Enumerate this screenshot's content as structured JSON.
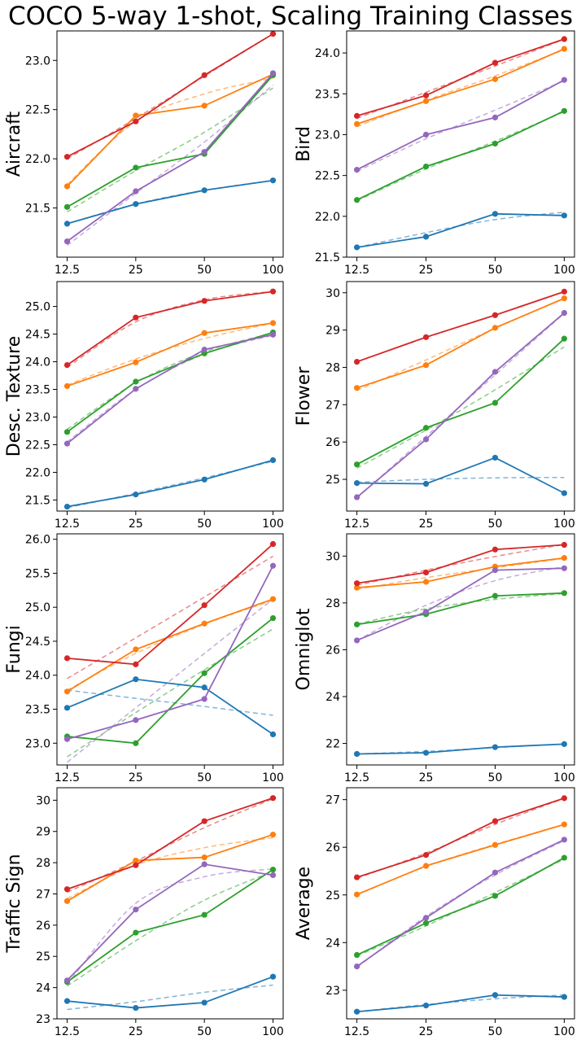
{
  "title": "COCO 5-way 1-shot, Scaling Training Classes",
  "series_colors": {
    "blue": "#1f77b4",
    "orange": "#ff7f0e",
    "green": "#2ca02c",
    "red": "#d62728",
    "purple": "#9467bd"
  },
  "chart_data": [
    {
      "type": "line",
      "ylabel": "Aircraft",
      "categories": [
        "12.5",
        "25",
        "50",
        "100"
      ],
      "ylim": [
        21.0,
        23.3
      ],
      "yticks": [
        21.5,
        22.0,
        22.5,
        23.0
      ],
      "ytick_labels": [
        "21.5",
        "22.0",
        "22.5",
        "23.0"
      ],
      "series": [
        {
          "color": "blue",
          "values": [
            21.34,
            21.54,
            21.68,
            21.78
          ],
          "fit": [
            21.34,
            21.54,
            21.68,
            21.78
          ]
        },
        {
          "color": "orange",
          "values": [
            21.72,
            22.44,
            22.54,
            22.86
          ],
          "fit": [
            21.74,
            22.38,
            22.66,
            22.82
          ]
        },
        {
          "color": "green",
          "values": [
            21.51,
            21.91,
            22.05,
            22.85
          ],
          "fit": [
            21.46,
            21.88,
            22.27,
            22.72
          ]
        },
        {
          "color": "red",
          "values": [
            22.02,
            22.38,
            22.85,
            23.27
          ],
          "fit": [
            22.0,
            22.41,
            22.84,
            23.27
          ]
        },
        {
          "color": "purple",
          "values": [
            21.16,
            21.67,
            22.07,
            22.87
          ],
          "fit": [
            21.12,
            21.65,
            22.17,
            22.75
          ]
        }
      ]
    },
    {
      "type": "line",
      "ylabel": "Bird",
      "categories": [
        "12.5",
        "25",
        "50",
        "100"
      ],
      "ylim": [
        21.5,
        24.27
      ],
      "yticks": [
        21.5,
        22.0,
        22.5,
        23.0,
        23.5,
        24.0
      ],
      "ytick_labels": [
        "21.5",
        "22.0",
        "22.5",
        "23.0",
        "23.5",
        "24.0"
      ],
      "series": [
        {
          "color": "blue",
          "values": [
            21.62,
            21.75,
            22.03,
            22.01
          ],
          "fit": [
            21.62,
            21.8,
            21.96,
            22.05
          ]
        },
        {
          "color": "orange",
          "values": [
            23.13,
            23.41,
            23.68,
            24.05
          ],
          "fit": [
            23.1,
            23.42,
            23.72,
            24.04
          ]
        },
        {
          "color": "green",
          "values": [
            22.2,
            22.61,
            22.89,
            23.29
          ],
          "fit": [
            22.19,
            22.58,
            22.92,
            23.28
          ]
        },
        {
          "color": "red",
          "values": [
            23.23,
            23.48,
            23.88,
            24.17
          ],
          "fit": [
            23.2,
            23.52,
            23.84,
            24.17
          ]
        },
        {
          "color": "purple",
          "values": [
            22.57,
            23.0,
            23.21,
            23.67
          ],
          "fit": [
            22.55,
            22.95,
            23.3,
            23.66
          ]
        }
      ]
    },
    {
      "type": "line",
      "ylabel": "Desc. Texture",
      "categories": [
        "12.5",
        "25",
        "50",
        "100"
      ],
      "ylim": [
        21.3,
        25.45
      ],
      "yticks": [
        21.5,
        22.0,
        22.5,
        23.0,
        23.5,
        24.0,
        24.5,
        25.0
      ],
      "ytick_labels": [
        "21.5",
        "22.0",
        "22.5",
        "23.0",
        "23.5",
        "24.0",
        "24.5",
        "25.0"
      ],
      "series": [
        {
          "color": "blue",
          "values": [
            21.38,
            21.6,
            21.87,
            22.22
          ],
          "fit": [
            21.36,
            21.62,
            21.9,
            22.2
          ]
        },
        {
          "color": "orange",
          "values": [
            23.56,
            23.99,
            24.52,
            24.7
          ],
          "fit": [
            23.58,
            24.05,
            24.42,
            24.7
          ]
        },
        {
          "color": "green",
          "values": [
            22.73,
            23.64,
            24.15,
            24.53
          ],
          "fit": [
            22.78,
            23.62,
            24.18,
            24.52
          ]
        },
        {
          "color": "red",
          "values": [
            23.94,
            24.8,
            25.1,
            25.27
          ],
          "fit": [
            23.9,
            24.72,
            25.12,
            25.27
          ]
        },
        {
          "color": "purple",
          "values": [
            22.52,
            23.51,
            24.22,
            24.49
          ],
          "fit": [
            22.55,
            23.5,
            24.14,
            24.48
          ]
        }
      ]
    },
    {
      "type": "line",
      "ylabel": "Flower",
      "categories": [
        "12.5",
        "25",
        "50",
        "100"
      ],
      "ylim": [
        24.15,
        30.3
      ],
      "yticks": [
        25,
        26,
        27,
        28,
        29,
        30
      ],
      "ytick_labels": [
        "25",
        "26",
        "27",
        "28",
        "29",
        "30"
      ],
      "series": [
        {
          "color": "blue",
          "values": [
            24.9,
            24.88,
            25.58,
            24.63
          ],
          "fit": [
            24.92,
            25.0,
            25.04,
            25.05
          ]
        },
        {
          "color": "orange",
          "values": [
            27.45,
            28.06,
            29.06,
            29.85
          ],
          "fit": [
            27.38,
            28.2,
            29.05,
            29.85
          ]
        },
        {
          "color": "green",
          "values": [
            25.4,
            26.38,
            27.05,
            28.77
          ],
          "fit": [
            25.3,
            26.32,
            27.4,
            28.55
          ]
        },
        {
          "color": "red",
          "values": [
            28.15,
            28.81,
            29.4,
            30.03
          ],
          "fit": [
            28.15,
            28.8,
            29.4,
            30.03
          ]
        },
        {
          "color": "purple",
          "values": [
            24.52,
            26.07,
            27.88,
            29.46
          ],
          "fit": [
            24.5,
            26.15,
            27.8,
            29.45
          ]
        }
      ]
    },
    {
      "type": "line",
      "ylabel": "Fungi",
      "categories": [
        "12.5",
        "25",
        "50",
        "100"
      ],
      "ylim": [
        22.68,
        26.08
      ],
      "yticks": [
        23.0,
        23.5,
        24.0,
        24.5,
        25.0,
        25.5,
        26.0
      ],
      "ytick_labels": [
        "23.0",
        "23.5",
        "24.0",
        "24.5",
        "25.0",
        "25.5",
        "26.0"
      ],
      "series": [
        {
          "color": "blue",
          "values": [
            23.52,
            23.94,
            23.82,
            23.13
          ],
          "fit": [
            23.78,
            23.66,
            23.54,
            23.41
          ]
        },
        {
          "color": "orange",
          "values": [
            23.76,
            24.38,
            24.76,
            25.12
          ],
          "fit": [
            23.78,
            24.32,
            24.75,
            25.1
          ]
        },
        {
          "color": "green",
          "values": [
            23.1,
            23.0,
            24.03,
            24.84
          ],
          "fit": [
            22.8,
            23.45,
            24.08,
            24.68
          ]
        },
        {
          "color": "red",
          "values": [
            24.25,
            24.16,
            25.03,
            25.93
          ],
          "fit": [
            23.95,
            24.55,
            25.15,
            25.75
          ]
        },
        {
          "color": "purple",
          "values": [
            23.06,
            23.34,
            23.65,
            25.61
          ],
          "fit": [
            22.72,
            23.52,
            24.32,
            25.12
          ]
        }
      ]
    },
    {
      "type": "line",
      "ylabel": "Omniglot",
      "categories": [
        "12.5",
        "25",
        "50",
        "100"
      ],
      "ylim": [
        21.08,
        30.95
      ],
      "yticks": [
        22,
        24,
        26,
        28,
        30
      ],
      "ytick_labels": [
        "22",
        "24",
        "26",
        "28",
        "30"
      ],
      "series": [
        {
          "color": "blue",
          "values": [
            21.55,
            21.6,
            21.84,
            21.97
          ],
          "fit": [
            21.55,
            21.66,
            21.82,
            21.98
          ]
        },
        {
          "color": "orange",
          "values": [
            28.65,
            28.9,
            29.55,
            29.92
          ],
          "fit": [
            28.58,
            29.08,
            29.5,
            29.9
          ]
        },
        {
          "color": "green",
          "values": [
            27.08,
            27.52,
            28.3,
            28.42
          ],
          "fit": [
            27.1,
            27.75,
            28.15,
            28.4
          ]
        },
        {
          "color": "red",
          "values": [
            28.84,
            29.3,
            30.28,
            30.48
          ],
          "fit": [
            28.75,
            29.4,
            29.98,
            30.5
          ]
        },
        {
          "color": "purple",
          "values": [
            26.4,
            27.62,
            29.4,
            29.48
          ],
          "fit": [
            26.4,
            27.9,
            28.95,
            29.55
          ]
        }
      ]
    },
    {
      "type": "line",
      "ylabel": "Traffic Sign",
      "categories": [
        "12.5",
        "25",
        "50",
        "100"
      ],
      "ylim": [
        23.0,
        30.4
      ],
      "yticks": [
        23,
        24,
        25,
        26,
        27,
        28,
        29,
        30
      ],
      "ytick_labels": [
        "23",
        "24",
        "25",
        "26",
        "27",
        "28",
        "29",
        "30"
      ],
      "series": [
        {
          "color": "blue",
          "values": [
            23.57,
            23.35,
            23.52,
            24.35
          ],
          "fit": [
            23.3,
            23.55,
            23.85,
            24.08
          ]
        },
        {
          "color": "orange",
          "values": [
            26.77,
            28.07,
            28.17,
            28.9
          ],
          "fit": [
            26.85,
            27.92,
            28.48,
            28.8
          ]
        },
        {
          "color": "green",
          "values": [
            24.18,
            25.76,
            26.33,
            27.78
          ],
          "fit": [
            24.05,
            25.5,
            26.8,
            27.72
          ]
        },
        {
          "color": "red",
          "values": [
            27.15,
            27.92,
            29.33,
            30.07
          ],
          "fit": [
            27.05,
            28.05,
            29.12,
            30.05
          ]
        },
        {
          "color": "purple",
          "values": [
            24.23,
            26.5,
            27.95,
            27.6
          ],
          "fit": [
            24.1,
            26.7,
            27.55,
            27.8
          ]
        }
      ]
    },
    {
      "type": "line",
      "ylabel": "Average",
      "categories": [
        "12.5",
        "25",
        "50",
        "100"
      ],
      "ylim": [
        22.4,
        27.25
      ],
      "yticks": [
        23,
        24,
        25,
        26,
        27
      ],
      "ytick_labels": [
        "23",
        "24",
        "25",
        "26",
        "27"
      ],
      "series": [
        {
          "color": "blue",
          "values": [
            22.55,
            22.68,
            22.9,
            22.86
          ],
          "fit": [
            22.55,
            22.7,
            22.82,
            22.9
          ]
        },
        {
          "color": "orange",
          "values": [
            25.01,
            25.61,
            26.05,
            26.48
          ],
          "fit": [
            25.0,
            25.6,
            26.06,
            26.48
          ]
        },
        {
          "color": "green",
          "values": [
            23.74,
            24.41,
            24.98,
            25.78
          ],
          "fit": [
            23.72,
            24.35,
            25.05,
            25.75
          ]
        },
        {
          "color": "red",
          "values": [
            25.37,
            25.84,
            26.55,
            27.03
          ],
          "fit": [
            25.35,
            25.88,
            26.48,
            27.03
          ]
        },
        {
          "color": "purple",
          "values": [
            23.5,
            24.52,
            25.47,
            26.16
          ],
          "fit": [
            23.48,
            24.55,
            25.42,
            26.14
          ]
        }
      ]
    }
  ]
}
